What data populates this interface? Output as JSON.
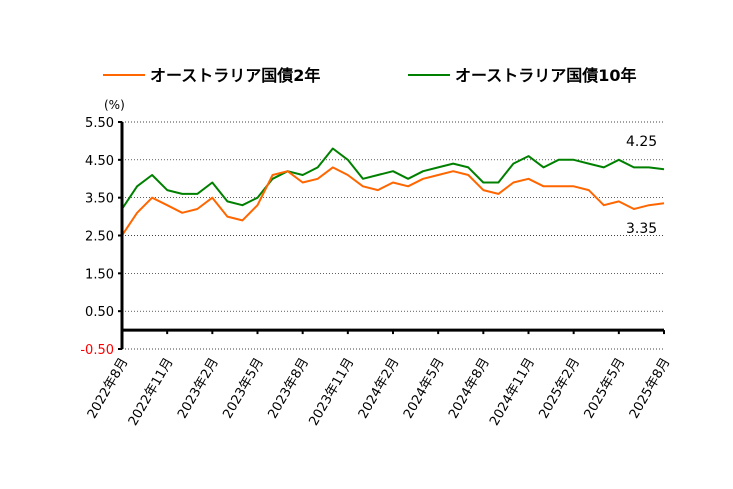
{
  "chart_data": {
    "type": "line",
    "ylabel": "(%)",
    "ylim": [
      -0.5,
      5.5
    ],
    "yticks": [
      "5.50",
      "4.50",
      "3.50",
      "2.50",
      "1.50",
      "0.50",
      "-0.50"
    ],
    "yticks_values": [
      5.5,
      4.5,
      3.5,
      2.5,
      1.5,
      0.5,
      -0.5
    ],
    "x_tick_labels": [
      "2022年8月",
      "2022年11月",
      "2023年2月",
      "2023年5月",
      "2023年8月",
      "2023年11月",
      "2024年2月",
      "2024年5月",
      "2024年8月",
      "2024年11月",
      "2025年2月",
      "2025年5月",
      "2025年8月"
    ],
    "grid": true,
    "legend_position": "top",
    "series": [
      {
        "name": "オーストラリア国債2年",
        "color": "#ff6600",
        "end_label": "3.35",
        "x": [
          "2022-08",
          "2022-09",
          "2022-10",
          "2022-11",
          "2022-12",
          "2023-01",
          "2023-02",
          "2023-03",
          "2023-04",
          "2023-05",
          "2023-06",
          "2023-07",
          "2023-08",
          "2023-09",
          "2023-10",
          "2023-11",
          "2023-12",
          "2024-01",
          "2024-02",
          "2024-03",
          "2024-04",
          "2024-05",
          "2024-06",
          "2024-07",
          "2024-08",
          "2024-09",
          "2024-10",
          "2024-11",
          "2024-12",
          "2025-01",
          "2025-02",
          "2025-03",
          "2025-04",
          "2025-05",
          "2025-06",
          "2025-07",
          "2025-08"
        ],
        "values": [
          2.5,
          3.1,
          3.5,
          3.3,
          3.1,
          3.2,
          3.5,
          3.0,
          2.9,
          3.3,
          4.1,
          4.2,
          3.9,
          4.0,
          4.3,
          4.1,
          3.8,
          3.7,
          3.9,
          3.8,
          4.0,
          4.1,
          4.2,
          4.1,
          3.7,
          3.6,
          3.9,
          4.0,
          3.8,
          3.8,
          3.8,
          3.7,
          3.3,
          3.4,
          3.2,
          3.3,
          3.35
        ]
      },
      {
        "name": "オーストラリア国債10年",
        "color": "#008000",
        "end_label": "4.25",
        "x": [
          "2022-08",
          "2022-09",
          "2022-10",
          "2022-11",
          "2022-12",
          "2023-01",
          "2023-02",
          "2023-03",
          "2023-04",
          "2023-05",
          "2023-06",
          "2023-07",
          "2023-08",
          "2023-09",
          "2023-10",
          "2023-11",
          "2023-12",
          "2024-01",
          "2024-02",
          "2024-03",
          "2024-04",
          "2024-05",
          "2024-06",
          "2024-07",
          "2024-08",
          "2024-09",
          "2024-10",
          "2024-11",
          "2024-12",
          "2025-01",
          "2025-02",
          "2025-03",
          "2025-04",
          "2025-05",
          "2025-06",
          "2025-07",
          "2025-08"
        ],
        "values": [
          3.2,
          3.8,
          4.1,
          3.7,
          3.6,
          3.6,
          3.9,
          3.4,
          3.3,
          3.5,
          4.0,
          4.2,
          4.1,
          4.3,
          4.8,
          4.5,
          4.0,
          4.1,
          4.2,
          4.0,
          4.2,
          4.3,
          4.4,
          4.3,
          3.9,
          3.9,
          4.4,
          4.6,
          4.3,
          4.5,
          4.5,
          4.4,
          4.3,
          4.5,
          4.3,
          4.3,
          4.25
        ]
      }
    ]
  }
}
